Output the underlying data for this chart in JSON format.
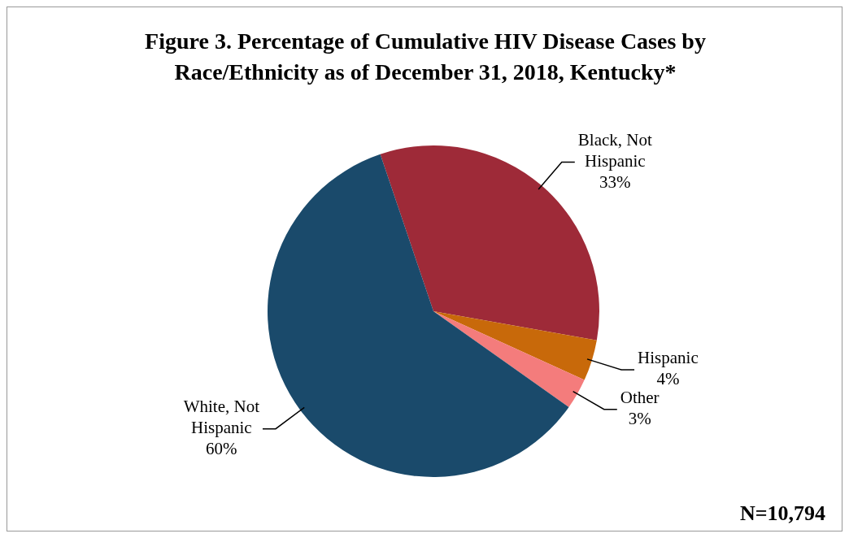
{
  "chart_data": {
    "type": "pie",
    "title": "Figure 3. Percentage of Cumulative HIV Disease Cases by Race/Ethnicity as of December 31, 2018, Kentucky*",
    "categories": [
      "Black, Not Hispanic",
      "Hispanic",
      "Other",
      "White, Not Hispanic"
    ],
    "values": [
      33,
      4,
      3,
      60
    ],
    "colors": [
      "#9e2a38",
      "#c8690a",
      "#f47c7c",
      "#1a4a6b"
    ],
    "value_labels": [
      "33%",
      "4%",
      "3%",
      "60%"
    ],
    "legend": false,
    "annotations": [
      "N=10,794"
    ]
  }
}
